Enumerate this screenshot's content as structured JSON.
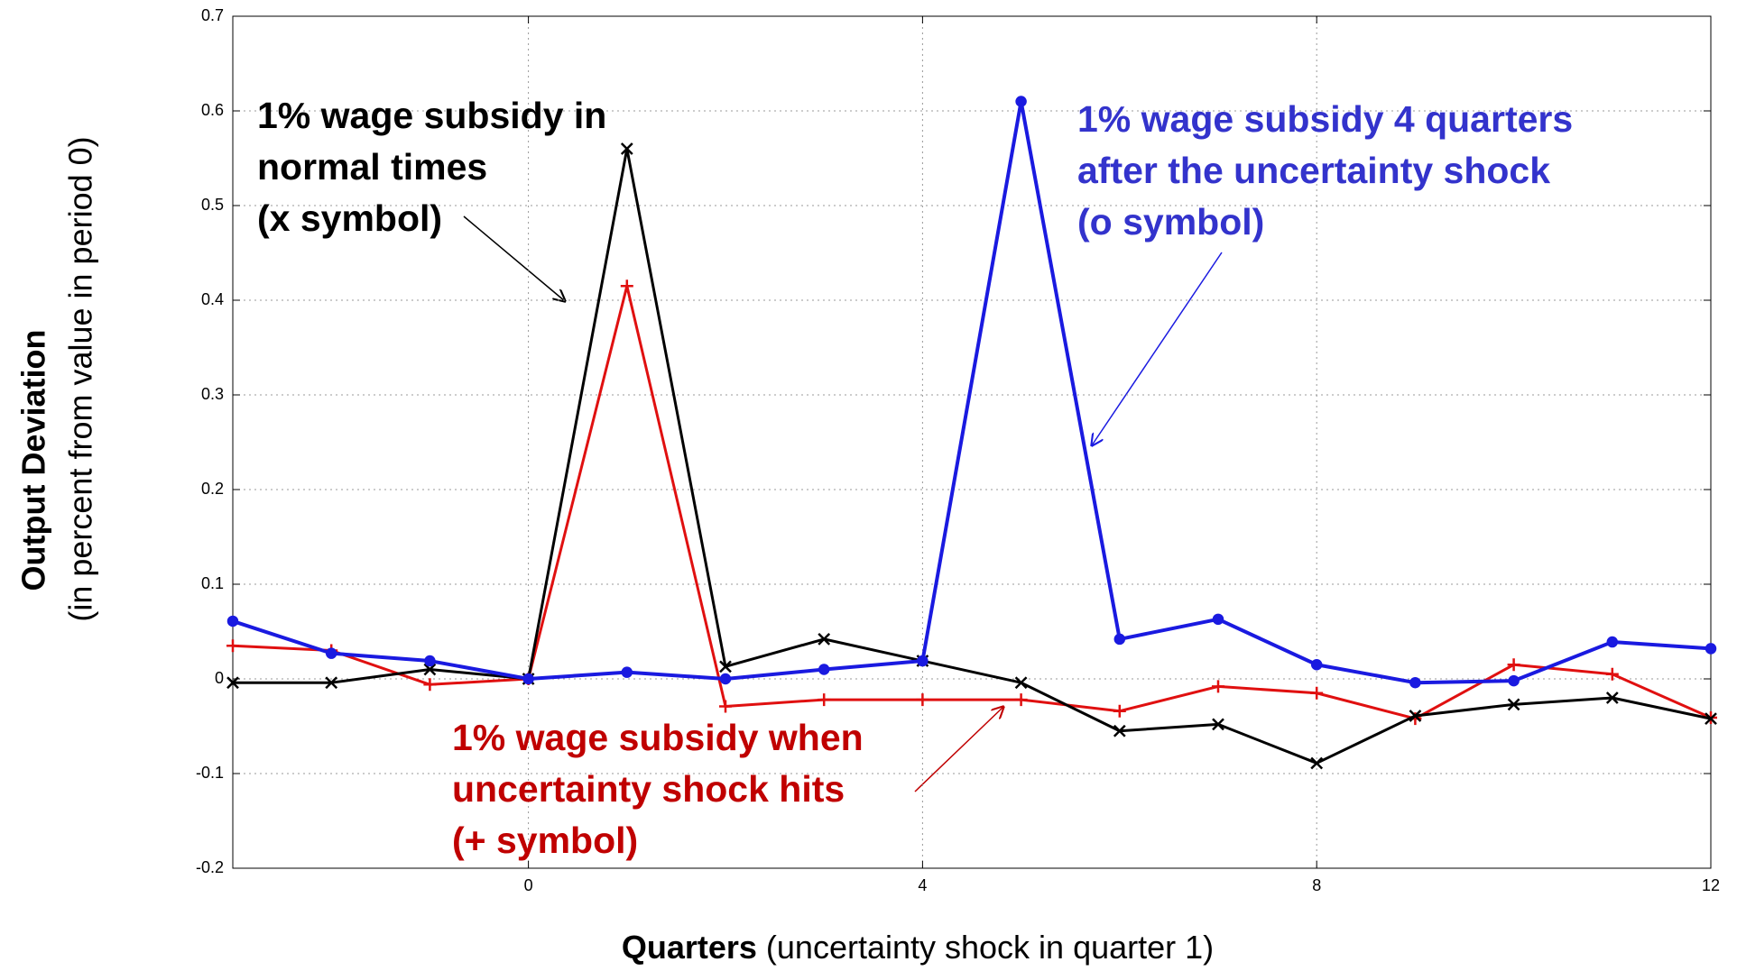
{
  "chart_data": {
    "type": "line",
    "x": [
      -3,
      -2,
      -1,
      0,
      1,
      2,
      3,
      4,
      5,
      6,
      7,
      8,
      9,
      10,
      11,
      12
    ],
    "series": [
      {
        "color": "#e01010",
        "marker": "+",
        "values": [
          0.035,
          0.03,
          -0.006,
          0,
          0.415,
          -0.029,
          -0.022,
          -0.022,
          -0.022,
          -0.034,
          -0.008,
          -0.015,
          -0.042,
          0.015,
          0.005,
          -0.041
        ]
      },
      {
        "color": "#000000",
        "marker": "x",
        "values": [
          -0.004,
          -0.004,
          0.01,
          0,
          0.56,
          0.013,
          0.042,
          0.019,
          -0.004,
          -0.055,
          -0.048,
          -0.089,
          -0.039,
          -0.027,
          -0.02,
          -0.042
        ]
      },
      {
        "color": "#1a1ae0",
        "marker": "o",
        "values": [
          0.061,
          0.027,
          0.019,
          0,
          0.007,
          0,
          0.01,
          0.019,
          0.61,
          0.042,
          0.063,
          0.015,
          -0.004,
          -0.002,
          0.039,
          0.032
        ]
      }
    ],
    "xlim": [
      -3,
      12
    ],
    "xticks": [
      0,
      4,
      8,
      12
    ],
    "ylim": [
      -0.2,
      0.7
    ],
    "yticks": [
      -0.2,
      -0.1,
      0,
      0.1,
      0.2,
      0.3,
      0.4,
      0.5,
      0.6,
      0.7
    ],
    "grid": true,
    "x_label": {
      "bold": "Quarters",
      "rest": "(uncertainty shock in quarter 1)"
    },
    "y_label": {
      "bold": "Output Deviation",
      "rest": "(in percent from value in period 0)"
    },
    "annotations": [
      {
        "color": "#000000",
        "lines": [
          "1% wage subsidy in",
          "normal times",
          "(x symbol)"
        ]
      },
      {
        "color": "#3333cc",
        "lines": [
          "1% wage subsidy 4 quarters",
          "after the uncertainty shock",
          "(o symbol)"
        ]
      },
      {
        "color": "#c00000",
        "lines": [
          "1% wage subsidy when",
          "uncertainty shock hits",
          "(+ symbol)"
        ]
      }
    ]
  }
}
